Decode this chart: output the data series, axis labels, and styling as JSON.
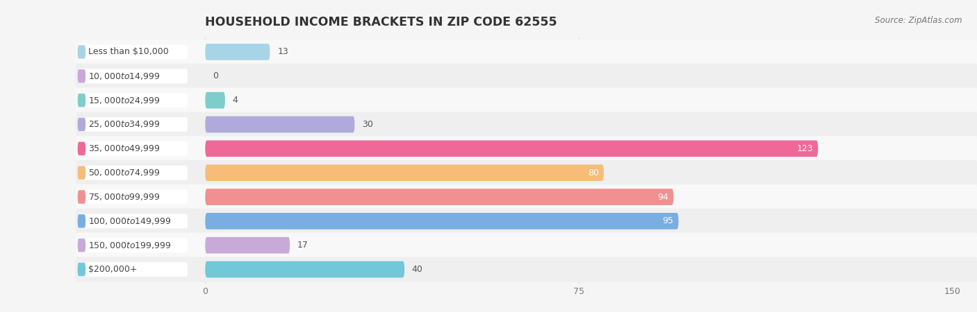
{
  "title": "HOUSEHOLD INCOME BRACKETS IN ZIP CODE 62555",
  "source": "Source: ZipAtlas.com",
  "categories": [
    "Less than $10,000",
    "$10,000 to $14,999",
    "$15,000 to $24,999",
    "$25,000 to $34,999",
    "$35,000 to $49,999",
    "$50,000 to $74,999",
    "$75,000 to $99,999",
    "$100,000 to $149,999",
    "$150,000 to $199,999",
    "$200,000+"
  ],
  "values": [
    13,
    0,
    4,
    30,
    123,
    80,
    94,
    95,
    17,
    40
  ],
  "colors": [
    "#a8d4e8",
    "#c9a8d8",
    "#7dceca",
    "#b0aadc",
    "#f06898",
    "#f5bc7a",
    "#f09090",
    "#7aaee0",
    "#c8aad8",
    "#70c8d8"
  ],
  "xlim_data": [
    0,
    150
  ],
  "xticks": [
    0,
    75,
    150
  ],
  "bar_height": 0.68,
  "row_colors": [
    "#f8f8f8",
    "#efefef"
  ],
  "label_bg_color": "#ffffff",
  "label_fontsize": 9.0,
  "value_fontsize": 9.0,
  "title_fontsize": 12.5,
  "source_fontsize": 8.5,
  "title_color": "#333333",
  "label_color": "#444444",
  "value_color_inside": "#ffffff",
  "value_color_outside": "#555555",
  "grid_color": "#dddddd",
  "background_color": "#f5f5f5"
}
